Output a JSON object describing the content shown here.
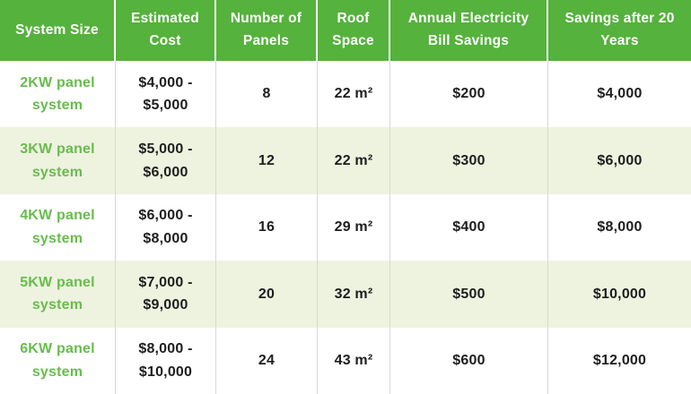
{
  "title": "Solar panel system size comparison table",
  "colors": {
    "header_bg": "#55b23c",
    "header_text": "#ffffff",
    "alt_row_bg": "#eef3e0",
    "system_text": "#68bc4d",
    "body_text": "#1e1e1e",
    "header_divider": "#ffffff",
    "body_divider": "#d7d7d7"
  },
  "header": {
    "columns": [
      "System Size",
      "Estimated Cost",
      "Number of Panels",
      "Roof Space",
      "Annual Electricity Bill Savings",
      "Savings after 20 Years"
    ]
  },
  "rows": [
    {
      "system": "2KW panel system",
      "cost": "$4,000 - $5,000",
      "panels": "8",
      "roof": "22 m²",
      "annual": "$200",
      "savings": "$4,000"
    },
    {
      "system": "3KW panel system",
      "cost": "$5,000 - $6,000",
      "panels": "12",
      "roof": "22 m²",
      "annual": "$300",
      "savings": "$6,000"
    },
    {
      "system": "4KW panel system",
      "cost": "$6,000 - $8,000",
      "panels": "16",
      "roof": "29 m²",
      "annual": "$400",
      "savings": "$8,000"
    },
    {
      "system": "5KW panel system",
      "cost": "$7,000 - $9,000",
      "panels": "20",
      "roof": "32 m²",
      "annual": "$500",
      "savings": "$10,000"
    },
    {
      "system": "6KW panel system",
      "cost": "$8,000 - $10,000",
      "panels": "24",
      "roof": "43 m²",
      "annual": "$600",
      "savings": "$12,000"
    }
  ],
  "chart_data": {
    "type": "table",
    "title": "Solar panel system costs and savings",
    "columns": [
      "System Size",
      "Estimated Cost",
      "Number of Panels",
      "Roof Space",
      "Annual Electricity Bill Savings",
      "Savings after 20 Years"
    ],
    "rows": [
      [
        "2KW panel system",
        "$4,000 - $5,000",
        8,
        "22 m²",
        200,
        4000
      ],
      [
        "3KW panel system",
        "$5,000 - $6,000",
        12,
        "22 m²",
        300,
        6000
      ],
      [
        "4KW panel system",
        "$6,000 - $8,000",
        16,
        "29 m²",
        400,
        8000
      ],
      [
        "5KW panel system",
        "$7,000 - $9,000",
        20,
        "32 m²",
        500,
        10000
      ],
      [
        "6KW panel system",
        "$8,000 - $10,000",
        24,
        "43 m²",
        600,
        12000
      ]
    ]
  }
}
